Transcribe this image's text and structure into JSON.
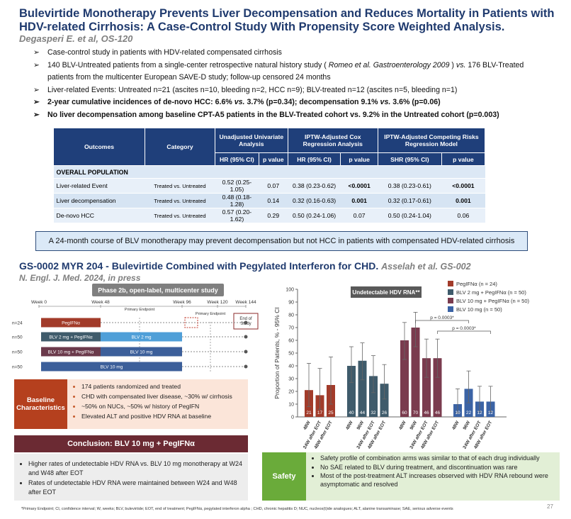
{
  "header": {
    "title": "Bulevirtide Monotherapy Prevents Liver Decompensation and Reduces Mortality in Patients with HDV-related Cirrhosis: A Case-Control Study With Propensity Score Weighted Analysis.",
    "subtitle": "Degasperi E. et al, OS-120"
  },
  "bullets": [
    [
      "Case-control study in patients with HDV-related compensated cirrhosis"
    ],
    [
      "140 BLV-Untreated patients from a single-center retrospective natural history study (",
      "Romeo et al. Gastroenterology 2009",
      ") ",
      "vs.",
      "176 BLV-Treated patients from the multicenter European SAVE-D study; follow-up censored 24 months"
    ],
    [
      "Liver-related Events: Untreated n=21 (ascites n=10, bleeding n=2, HCC n=9); BLV-treated n=12 (ascites n=5, bleeding n=1)"
    ],
    [
      "2-year cumulative incidences of de-novo HCC: 6.6% ",
      "vs.",
      "3.7% (p=0.34); decompensation 9.1% ",
      "vs.",
      "3.6% (p=0.06)"
    ],
    [
      "No liver decompensation among baseline CPT-A5 patients in the BLV-Treated cohort vs. 9.2% in the Untreated cohort (p=0.003)"
    ]
  ],
  "table": {
    "header_top": [
      "Outcomes",
      "Category",
      "Unadjusted Univariate Analysis",
      "IPTW-Adjusted Cox Regression Analysis",
      "IPTW-Adjusted Competing Risks Regression Model"
    ],
    "header_sub": [
      "HR (95% CI)",
      "p value",
      "HR (95% CI)",
      "p value",
      "SHR (95% CI)",
      "p value"
    ],
    "section": "OVERALL POPULATION",
    "rows": [
      [
        "Liver-related Event",
        "Treated vs. Untreated",
        "0.52 (0.25-1.05)",
        "0.07",
        "0.38 (0.23-0.62)",
        "<0.0001",
        "0.38 (0.23-0.61)",
        "<0.0001"
      ],
      [
        "Liver decompensation",
        "Treated vs. Untreated",
        "0.48 (0.18-1.28)",
        "0.14",
        "0.32 (0.16-0.63)",
        "0.001",
        "0.32 (0.17-0.61)",
        "0.001"
      ],
      [
        "De-novo HCC",
        "Treated vs. Untreated",
        "0.57 (0.20-1.62)",
        "0.29",
        "0.50 (0.24-1.06)",
        "0.07",
        "0.50 (0.24-1.04)",
        "0.06"
      ]
    ]
  },
  "callout": "A 24-month course of BLV monotherapy may prevent decompensation but not HCC in patients with compensated HDV-related cirrhosis",
  "section2": {
    "title": "GS-0002 MYR 204 - Bulevirtide Combined with Pegylated Interferon for CHD.",
    "citation": "Asselah et al. GS-002",
    "journal": "N. Engl. J. Med. 2024, in press"
  },
  "timeline": {
    "banner": "Phase 2b, open-label, multicenter study",
    "weeks": [
      "Week 0",
      "Week 48",
      "Week 96",
      "Week 120",
      "Week 144"
    ],
    "endpoints": [
      "Primary Endpoint",
      "Primary Endpoint"
    ],
    "end_of_study": "End of Study",
    "arms": [
      {
        "n": "n=24",
        "segments": [
          "PegIFNα"
        ]
      },
      {
        "n": "n=50",
        "segments": [
          "BLV 2 mg + PegIFNα",
          "BLV 2 mg"
        ]
      },
      {
        "n": "n=50",
        "segments": [
          "BLV 10 mg + PegIFNα",
          "BLV 10 mg"
        ]
      },
      {
        "n": "n=50",
        "segments": [
          "BLV 10 mg"
        ]
      }
    ]
  },
  "baseline": {
    "label": "Baseline Characteristics",
    "items": [
      "174 patients randomized and treated",
      "CHD with compensated liver disease, ~30% w/ cirrhosis",
      "~50% on NUCs, ~50% w/ history of PegIFN",
      "Elevated ALT and positive HDV RNA at baseline"
    ]
  },
  "conclusion": {
    "title": "Conclusion: BLV 10 mg + PegIFNα",
    "items": [
      "Higher rates of undetectable HDV RNA vs. BLV 10 mg monotherapy at W24 and W48 after EOT",
      "Rates of undetectable HDV RNA were maintained between W24 and W48 after EOT"
    ]
  },
  "chart_data": {
    "type": "bar",
    "title": "Undetectable HDV RNA**",
    "ylabel": "Proportion of Patients, % - 95% CI",
    "ylim": [
      0,
      100
    ],
    "yticks": [
      0,
      10,
      20,
      30,
      40,
      50,
      60,
      70,
      80,
      90,
      100
    ],
    "legend": "upper right",
    "series": [
      {
        "name": "PegIFNα (n = 24)",
        "color": "#a23b2a",
        "categories": [
          "48W",
          "24W after EOT",
          "48W after EOT"
        ],
        "values": [
          21,
          17,
          25
        ],
        "ci_low": [
          8,
          6,
          10
        ],
        "ci_high": [
          42,
          38,
          47
        ]
      },
      {
        "name": "BLV 2 mg + PegIFNα (n = 50)",
        "color": "#3f5b6b",
        "categories": [
          "48W",
          "96W",
          "24W after EOT",
          "48W after EOT"
        ],
        "values": [
          40,
          44,
          32,
          26
        ],
        "ci_low": [
          27,
          29,
          19,
          14
        ],
        "ci_high": [
          55,
          58,
          48,
          41
        ]
      },
      {
        "name": "BLV 10 mg + PegIFNα (n = 50)",
        "color": "#7a3b4e",
        "categories": [
          "48W",
          "96W",
          "24W after EOT",
          "48W after EOT"
        ],
        "values": [
          60,
          70,
          46,
          46
        ],
        "ci_low": [
          45,
          55,
          31,
          31
        ],
        "ci_high": [
          74,
          82,
          61,
          61
        ]
      },
      {
        "name": "BLV 10 mg (n = 50)",
        "color": "#3b63a5",
        "categories": [
          "48W",
          "96W",
          "24W after EOT",
          "48W after EOT"
        ],
        "values": [
          10,
          22,
          12,
          12
        ],
        "ci_low": [
          3,
          11,
          4,
          4
        ],
        "ci_high": [
          22,
          36,
          24,
          24
        ]
      }
    ],
    "annotations": [
      "p = 0.0003*",
      "p = 0.0003*"
    ]
  },
  "safety": {
    "label": "Safety",
    "items": [
      "Safety profile of combination arms was similar to that of each drug individually",
      "No SAE related to BLV during treatment, and discontinuation was rare",
      "Most of the post-treatment ALT increases observed with HDV RNA rebound were asymptomatic and resolved"
    ]
  },
  "footnote": "*Primary Endpoint; CI, confidence interval; W, weeks; BLV, bulevirtide; EOT, end of treatment; PegIFNα, pegylated interferon alpha ; CHD, chronic hepatitis D; NUC, nucleos(t)ide analogues; ALT, alanine transaminase; SAE, serious adverse events",
  "page_number": "27"
}
